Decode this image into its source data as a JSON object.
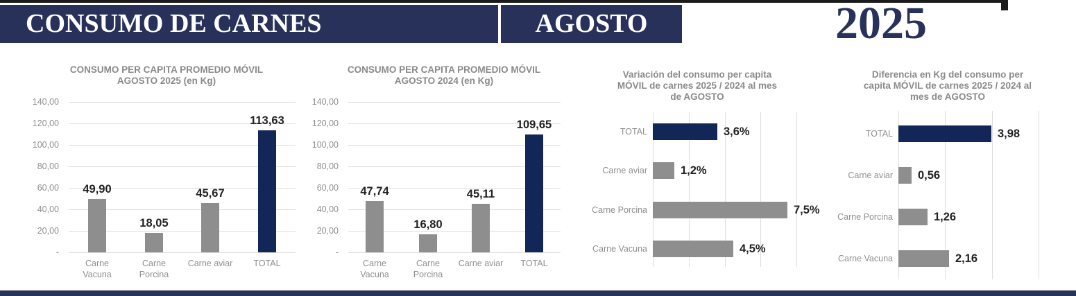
{
  "header": {
    "title": "CONSUMO DE CARNES",
    "month": "AGOSTO",
    "year": "2025"
  },
  "colors": {
    "navy_header": "#273159",
    "navy_bar": "#122657",
    "gray_bar": "#8e8e8e",
    "title_gray": "#8a8a8a",
    "label_gray": "#8f8f8f",
    "value_dark": "#222222",
    "gridline": "#dedede",
    "topline": "#1a1a1a"
  },
  "chart_data": [
    {
      "type": "bar",
      "orientation": "vertical",
      "title": "CONSUMO PER CAPITA PROMEDIO MÓVIL AGOSTO 2025 (en Kg)",
      "title_lines": [
        "CONSUMO PER CAPITA PROMEDIO MÓVIL",
        "AGOSTO 2025 (en Kg)"
      ],
      "categories": [
        "Carne Vacuna",
        "Carne Porcina",
        "Carne aviar",
        "TOTAL"
      ],
      "category_display": [
        "Carne\nVacuna",
        "Carne\nPorcina",
        "Carne aviar",
        "TOTAL"
      ],
      "values": [
        49.9,
        18.05,
        45.67,
        113.63
      ],
      "value_labels": [
        "49,90",
        "18,05",
        "45,67",
        "113,63"
      ],
      "bar_colors": [
        "#8e8e8e",
        "#8e8e8e",
        "#8e8e8e",
        "#122657"
      ],
      "ylim": [
        0,
        140
      ],
      "yticks": [
        "140,00",
        "120,00",
        "100,00",
        "80,00",
        "60,00",
        "40,00",
        "20,00",
        "-"
      ],
      "xlabel": "",
      "ylabel": "",
      "grid": "horizontal",
      "legend": "none"
    },
    {
      "type": "bar",
      "orientation": "vertical",
      "title": "CONSUMO PER CAPITA PROMEDIO MÓVIL AGOSTO 2024 (en Kg)",
      "title_lines": [
        "CONSUMO PER CAPITA PROMEDIO MÓVIL",
        "AGOSTO 2024 (en Kg)"
      ],
      "categories": [
        "Carne Vacuna",
        "Carne Porcina",
        "Carne aviar",
        "TOTAL"
      ],
      "category_display": [
        "Carne\nVacuna",
        "Carne\nPorcina",
        "Carne aviar",
        "TOTAL"
      ],
      "values": [
        47.74,
        16.8,
        45.11,
        109.65
      ],
      "value_labels": [
        "47,74",
        "16,80",
        "45,11",
        "109,65"
      ],
      "bar_colors": [
        "#8e8e8e",
        "#8e8e8e",
        "#8e8e8e",
        "#122657"
      ],
      "ylim": [
        0,
        140
      ],
      "yticks": [
        "140,00",
        "120,00",
        "100,00",
        "80,00",
        "60,00",
        "40,00",
        "20,00",
        "-"
      ],
      "xlabel": "",
      "ylabel": "",
      "grid": "horizontal",
      "legend": "none"
    },
    {
      "type": "bar",
      "orientation": "horizontal",
      "title": "Variación del consumo per capita MÓVIL de carnes 2025 / 2024 al mes de AGOSTO",
      "title_lines": [
        "Variación del consumo per capita",
        "MÓVIL de carnes 2025 / 2024 al mes",
        "de AGOSTO"
      ],
      "categories": [
        "TOTAL",
        "Carne aviar",
        "Carne Porcina",
        "Carne Vacuna"
      ],
      "values": [
        3.6,
        1.2,
        7.5,
        4.5
      ],
      "value_labels": [
        "3,6%",
        "1,2%",
        "7,5%",
        "4,5%"
      ],
      "bar_colors": [
        "#122657",
        "#8e8e8e",
        "#8e8e8e",
        "#8e8e8e"
      ],
      "xlim": [
        0,
        8
      ],
      "xlabel": "",
      "ylabel": "",
      "grid": "vertical",
      "legend": "none"
    },
    {
      "type": "bar",
      "orientation": "horizontal",
      "title": "Diferencia en Kg del consumo per capita MÓVIL de carnes 2025 / 2024 al mes de AGOSTO",
      "title_lines": [
        "Diferencia en Kg del consumo per",
        "capita MÓVIL de carnes 2025 / 2024 al",
        "mes de AGOSTO"
      ],
      "categories": [
        "TOTAL",
        "Carne aviar",
        "Carne Porcina",
        "Carne Vacuna"
      ],
      "values": [
        3.98,
        0.56,
        1.26,
        2.16
      ],
      "value_labels": [
        "3,98",
        "0,56",
        "1,26",
        "2,16"
      ],
      "bar_colors": [
        "#122657",
        "#8e8e8e",
        "#8e8e8e",
        "#8e8e8e"
      ],
      "xlim": [
        0,
        6
      ],
      "xlabel": "",
      "ylabel": "",
      "grid": "vertical",
      "legend": "none"
    }
  ]
}
